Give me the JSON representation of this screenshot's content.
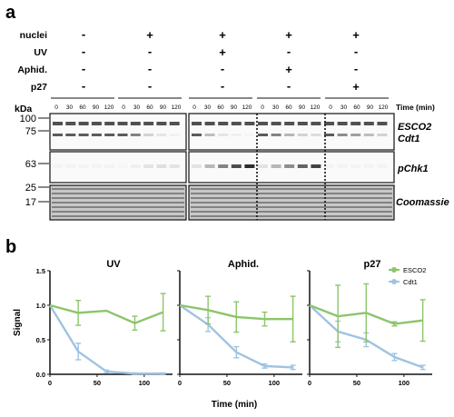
{
  "panel_a": {
    "label": "a",
    "conditions": [
      {
        "label": "nuclei",
        "values": [
          "-",
          "+",
          "+",
          "+",
          "+"
        ]
      },
      {
        "label": "UV",
        "values": [
          "-",
          "-",
          "+",
          "-",
          "-"
        ]
      },
      {
        "label": "Aphid.",
        "values": [
          "-",
          "-",
          "-",
          "+",
          "-"
        ]
      },
      {
        "label": "p27",
        "values": [
          "-",
          "-",
          "-",
          "-",
          "+"
        ]
      }
    ],
    "kda_label": "kDa",
    "time_label": "Time (min)",
    "timepoints": [
      "0",
      "30",
      "60",
      "90",
      "120"
    ],
    "markers": [
      "100",
      "75",
      "63",
      "25",
      "17"
    ],
    "blots": [
      {
        "name": "ESCO2 / Cdt1",
        "labels": [
          "ESCO2",
          "Cdt1"
        ]
      },
      {
        "name": "pChk1",
        "labels": [
          "pChk1"
        ]
      },
      {
        "name": "Coomassie",
        "labels": [
          "Coomassie"
        ]
      }
    ]
  },
  "panel_b": {
    "label": "b",
    "colors": {
      "ESCO2": "#8cc56a",
      "Cdt1": "#9fc3e2"
    }
  },
  "chart_data": [
    {
      "type": "line",
      "title": "UV",
      "xlabel": "",
      "ylabel": "Signal",
      "xlim": [
        0,
        130
      ],
      "ylim": [
        0,
        1.5
      ],
      "xticks": [
        0,
        50,
        100
      ],
      "yticks": [
        0.0,
        0.5,
        1.0,
        1.5
      ],
      "series": [
        {
          "name": "ESCO2",
          "x": [
            0,
            30,
            60,
            90,
            120
          ],
          "y": [
            1.0,
            0.89,
            0.92,
            0.74,
            0.9
          ],
          "err": [
            0,
            0.18,
            0,
            0.1,
            0.27
          ]
        },
        {
          "name": "Cdt1",
          "x": [
            0,
            30,
            60,
            90,
            120
          ],
          "y": [
            1.0,
            0.33,
            0.04,
            0.01,
            0.01
          ],
          "err": [
            0,
            0.12,
            0.02,
            0.01,
            0.01
          ]
        }
      ]
    },
    {
      "type": "line",
      "title": "Aphid.",
      "xlabel": "Time (min)",
      "ylabel": "",
      "xlim": [
        0,
        130
      ],
      "ylim": [
        0,
        1.5
      ],
      "xticks": [
        0,
        50,
        100
      ],
      "yticks": [
        0.0,
        0.5,
        1.0,
        1.5
      ],
      "series": [
        {
          "name": "ESCO2",
          "x": [
            0,
            30,
            60,
            90,
            120
          ],
          "y": [
            1.0,
            0.93,
            0.83,
            0.8,
            0.8
          ],
          "err": [
            0,
            0.2,
            0.22,
            0.1,
            0.33
          ]
        },
        {
          "name": "Cdt1",
          "x": [
            0,
            30,
            60,
            90,
            120
          ],
          "y": [
            1.0,
            0.72,
            0.32,
            0.12,
            0.1
          ],
          "err": [
            0,
            0.1,
            0.08,
            0.03,
            0.03
          ]
        }
      ]
    },
    {
      "type": "line",
      "title": "p27",
      "xlabel": "",
      "ylabel": "",
      "xlim": [
        0,
        130
      ],
      "ylim": [
        0,
        1.5
      ],
      "xticks": [
        0,
        50,
        100
      ],
      "yticks": [
        0.0,
        0.5,
        1.0,
        1.5
      ],
      "legend": {
        "placement": "top-right",
        "entries": [
          "ESCO2",
          "Cdt1"
        ]
      },
      "series": [
        {
          "name": "ESCO2",
          "x": [
            0,
            30,
            60,
            90,
            120
          ],
          "y": [
            1.0,
            0.84,
            0.89,
            0.73,
            0.78
          ],
          "err": [
            0,
            0.45,
            0.42,
            0.03,
            0.3
          ]
        },
        {
          "name": "Cdt1",
          "x": [
            0,
            30,
            60,
            90,
            120
          ],
          "y": [
            1.0,
            0.62,
            0.5,
            0.25,
            0.1
          ],
          "err": [
            0,
            0.15,
            0.1,
            0.05,
            0.03
          ]
        }
      ]
    }
  ]
}
